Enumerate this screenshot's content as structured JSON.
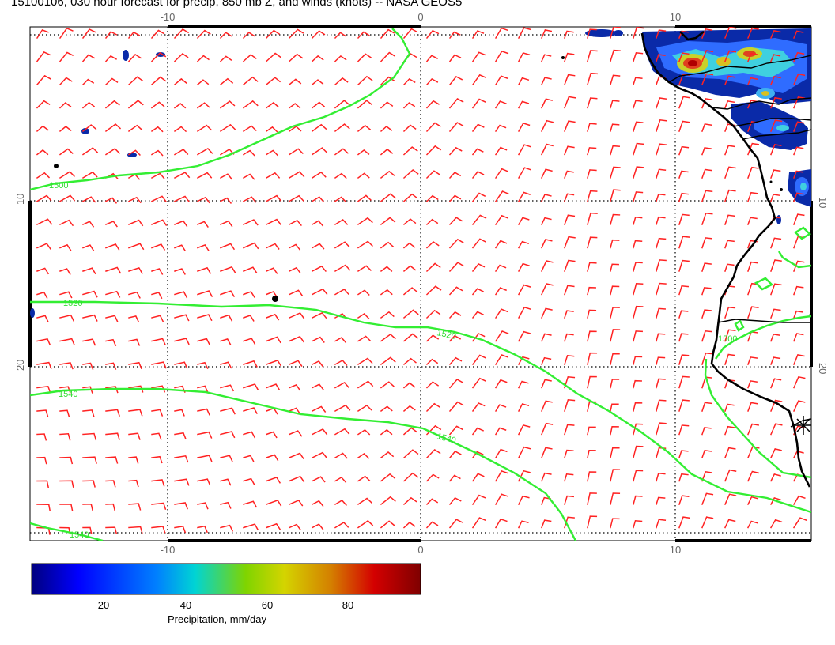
{
  "title": "15100106, 030 hour forecast for precip, 850 mb Z, and winds (knots) -- NASA GEOS5",
  "map": {
    "lon_ticks_top": [
      "-10",
      "0",
      "10"
    ],
    "lon_ticks_bottom": [
      "-10",
      "0",
      "10"
    ],
    "lat_ticks_left": [
      "-10",
      "-20"
    ],
    "lat_ticks_right": [
      "-10",
      "-20"
    ],
    "contour_labels": [
      "1500",
      "1520",
      "1520",
      "1540",
      "1540",
      "1540",
      "1500"
    ],
    "colors": {
      "barbs": "#ff2222",
      "contours": "#33ee33",
      "coast": "#000000",
      "grid": "#000000"
    }
  },
  "colorbar": {
    "label": "Precipitation, mm/day",
    "ticks": [
      "20",
      "40",
      "60",
      "80"
    ],
    "colors": [
      "#00007f",
      "#0000ff",
      "#007fff",
      "#00d4d4",
      "#7fd400",
      "#d4d400",
      "#d47f00",
      "#d40000",
      "#7f0000"
    ]
  }
}
